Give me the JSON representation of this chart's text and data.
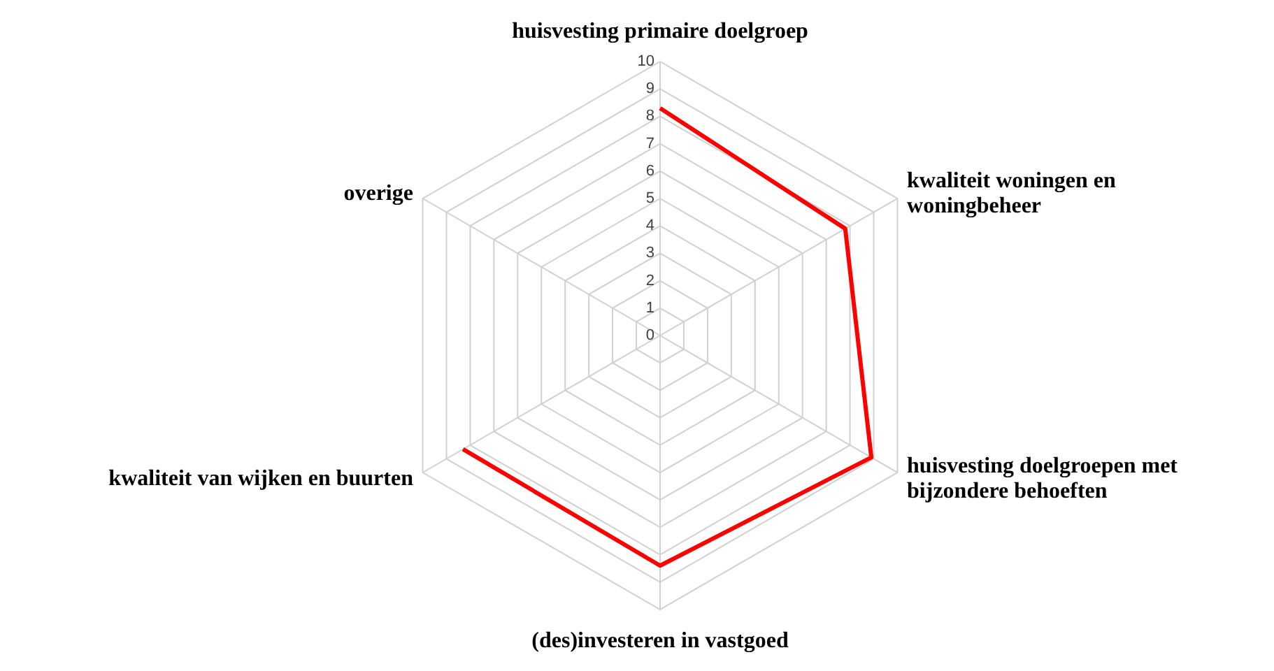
{
  "chart_data": {
    "type": "radar",
    "categories": [
      "huisvesting primaire doelgroep",
      "kwaliteit woningen en\nwoningbeheer",
      "huisvesting doelgroepen met\nbijzondere behoeften",
      "(des)investeren in vastgoed",
      "kwaliteit van wijken en buurten",
      "overige"
    ],
    "series": [
      {
        "color": "#ff0000",
        "values": [
          8.3,
          7.8,
          8.9,
          8.4,
          8.3,
          null
        ]
      }
    ],
    "ylim": [
      0,
      10
    ],
    "yticks": [
      0,
      1,
      2,
      3,
      4,
      5,
      6,
      7,
      8,
      9,
      10
    ],
    "grid": true
  }
}
